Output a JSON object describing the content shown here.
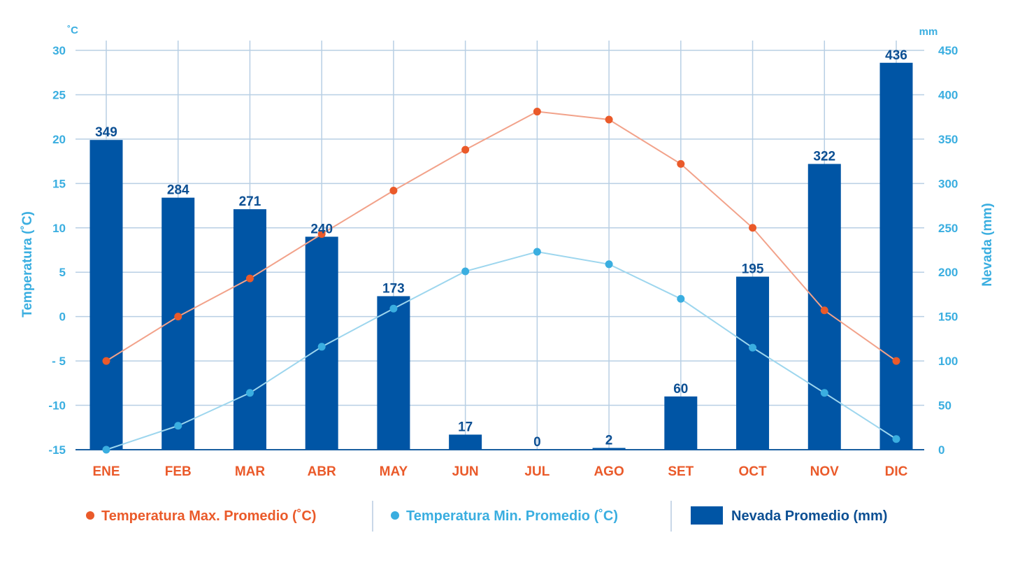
{
  "chart_data": {
    "type": "bar",
    "categories": [
      "ENE",
      "FEB",
      "MAR",
      "ABR",
      "MAY",
      "JUN",
      "JUL",
      "AGO",
      "SET",
      "OCT",
      "NOV",
      "DIC"
    ],
    "series": [
      {
        "name": "Nevada Promedio (mm)",
        "type": "bar",
        "axis": "right",
        "values": [
          349,
          284,
          271,
          240,
          173,
          17,
          0,
          2,
          60,
          195,
          322,
          436
        ],
        "color": "#0055a5"
      },
      {
        "name": "Temperatura Max. Promedio (˚C)",
        "type": "line",
        "axis": "left",
        "values": [
          -5,
          0,
          4.3,
          9.3,
          14.2,
          18.8,
          23.1,
          22.2,
          17.2,
          10,
          0.7,
          -5
        ],
        "color": "#ea5a2a"
      },
      {
        "name": "Temperatura Min. Promedio (˚C)",
        "type": "line",
        "axis": "left",
        "values": [
          -15,
          -12.3,
          -8.6,
          -3.4,
          0.9,
          5.1,
          7.3,
          5.9,
          2,
          -3.5,
          -8.6,
          -13.8
        ],
        "color": "#3aaee0"
      }
    ],
    "y_left": {
      "label": "Temperatura (˚C)",
      "unit": "˚C",
      "ylim": [
        -15,
        30
      ],
      "ticks": [
        30,
        25,
        20,
        15,
        10,
        5,
        0,
        -5,
        -10,
        -15
      ],
      "tick_labels": [
        "30",
        "25",
        "20",
        "15",
        "10",
        "5",
        "0",
        "- 5",
        "-10",
        "-15"
      ]
    },
    "y_right": {
      "label": "Nevada  (mm)",
      "unit": "mm",
      "ylim": [
        0,
        450
      ],
      "ticks": [
        450,
        400,
        350,
        300,
        250,
        200,
        150,
        100,
        50,
        0
      ]
    },
    "grid": true,
    "legend_position": "bottom",
    "legend": [
      {
        "label": "Temperatura Max. Promedio (˚C)",
        "marker": "dot",
        "color": "#ea5a2a"
      },
      {
        "label": "Temperatura Min. Promedio (˚C)",
        "marker": "dot",
        "color": "#3aaee0"
      },
      {
        "label": "Nevada Promedio (mm)",
        "marker": "box",
        "color": "#0055a5"
      }
    ],
    "colors": {
      "grid": "#b8cfe4",
      "axis": "#1a5fa0",
      "bar_label": "#0c4f93",
      "month": "#ea5a2a",
      "max_line": "#f2a28a",
      "min_line": "#9dd6ee"
    }
  }
}
